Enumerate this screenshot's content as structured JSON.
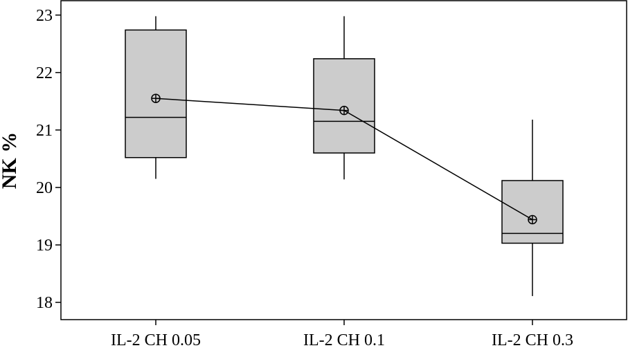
{
  "chart_data": {
    "type": "box",
    "title": "",
    "xlabel": "",
    "ylabel": "NK %",
    "ylim": [
      17.7,
      23.25
    ],
    "yticks": [
      18,
      19,
      20,
      21,
      22,
      23
    ],
    "grid": false,
    "legend": "none",
    "categories": [
      "IL-2 CH 0.05",
      "IL-2 CH 0.1",
      "IL-2 CH 0.3"
    ],
    "boxes": [
      {
        "category": "IL-2 CH 0.05",
        "whisker_low": 20.15,
        "q1": 20.52,
        "median": 21.22,
        "q3": 22.74,
        "whisker_high": 22.98,
        "mean": 21.55
      },
      {
        "category": "IL-2 CH 0.1",
        "whisker_low": 20.14,
        "q1": 20.6,
        "median": 21.15,
        "q3": 22.24,
        "whisker_high": 22.98,
        "mean": 21.34
      },
      {
        "category": "IL-2 CH 0.3",
        "whisker_low": 18.11,
        "q1": 19.03,
        "median": 19.2,
        "q3": 20.12,
        "whisker_high": 21.18,
        "mean": 19.44
      }
    ],
    "mean_line": {
      "connects": "means",
      "marker": "circle-plus"
    },
    "colors": {
      "box_fill": "#cccccc",
      "stroke": "#000000"
    }
  }
}
